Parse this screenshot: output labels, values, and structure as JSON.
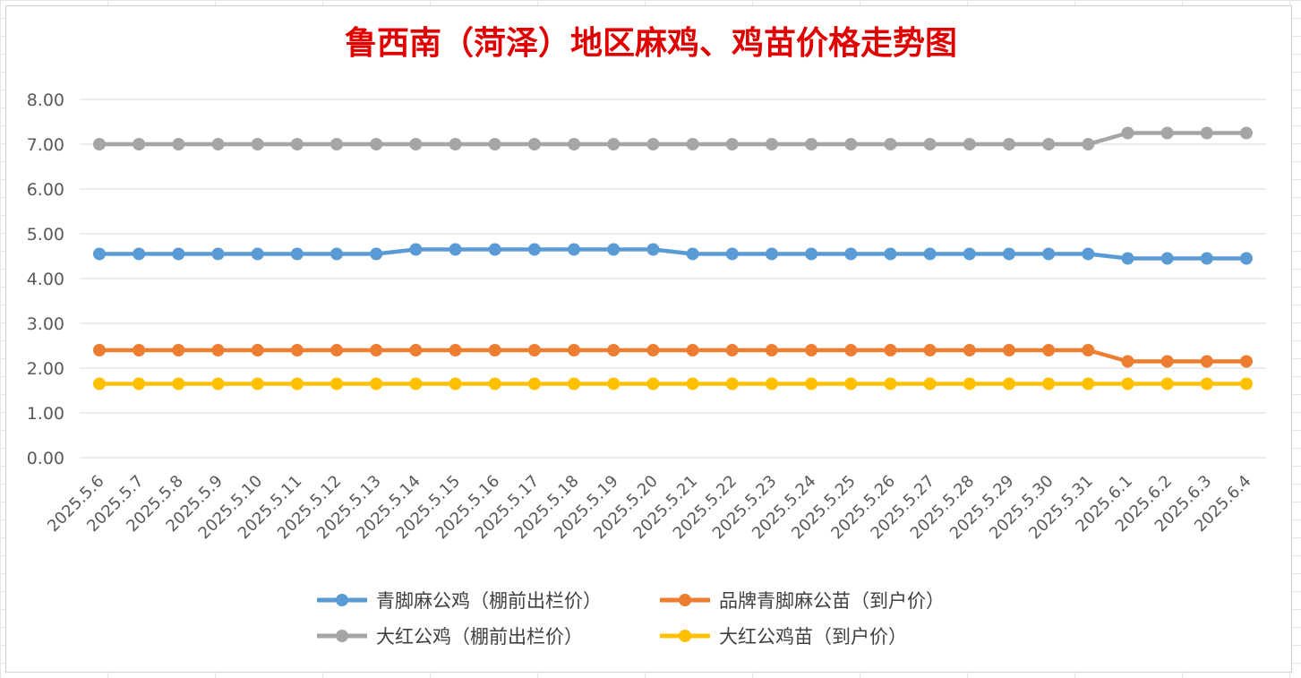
{
  "chart_data": {
    "type": "line",
    "title": "鲁西南（菏泽）地区麻鸡、鸡苗价格走势图",
    "xlabel": "",
    "ylabel": "",
    "ylim": [
      0,
      8
    ],
    "yticks": [
      "0.00",
      "1.00",
      "2.00",
      "3.00",
      "4.00",
      "5.00",
      "6.00",
      "7.00",
      "8.00"
    ],
    "grid": "horizontal",
    "legend_position": "bottom",
    "categories": [
      "2025.5.6",
      "2025.5.7",
      "2025.5.8",
      "2025.5.9",
      "2025.5.10",
      "2025.5.11",
      "2025.5.12",
      "2025.5.13",
      "2025.5.14",
      "2025.5.15",
      "2025.5.16",
      "2025.5.17",
      "2025.5.18",
      "2025.5.19",
      "2025.5.20",
      "2025.5.21",
      "2025.5.22",
      "2025.5.23",
      "2025.5.24",
      "2025.5.25",
      "2025.5.26",
      "2025.5.27",
      "2025.5.28",
      "2025.5.29",
      "2025.5.30",
      "2025.5.31",
      "2025.6.1",
      "2025.6.2",
      "2025.6.3",
      "2025.6.4"
    ],
    "series": [
      {
        "name": "青脚麻公鸡（棚前出栏价）",
        "color": "#5b9bd5",
        "values": [
          4.55,
          4.55,
          4.55,
          4.55,
          4.55,
          4.55,
          4.55,
          4.55,
          4.65,
          4.65,
          4.65,
          4.65,
          4.65,
          4.65,
          4.65,
          4.55,
          4.55,
          4.55,
          4.55,
          4.55,
          4.55,
          4.55,
          4.55,
          4.55,
          4.55,
          4.55,
          4.45,
          4.45,
          4.45,
          4.45
        ]
      },
      {
        "name": "品牌青脚麻公苗（到户价）",
        "color": "#ed7d31",
        "values": [
          2.4,
          2.4,
          2.4,
          2.4,
          2.4,
          2.4,
          2.4,
          2.4,
          2.4,
          2.4,
          2.4,
          2.4,
          2.4,
          2.4,
          2.4,
          2.4,
          2.4,
          2.4,
          2.4,
          2.4,
          2.4,
          2.4,
          2.4,
          2.4,
          2.4,
          2.4,
          2.15,
          2.15,
          2.15,
          2.15
        ]
      },
      {
        "name": "大红公鸡（棚前出栏价）",
        "color": "#a5a5a5",
        "values": [
          7.0,
          7.0,
          7.0,
          7.0,
          7.0,
          7.0,
          7.0,
          7.0,
          7.0,
          7.0,
          7.0,
          7.0,
          7.0,
          7.0,
          7.0,
          7.0,
          7.0,
          7.0,
          7.0,
          7.0,
          7.0,
          7.0,
          7.0,
          7.0,
          7.0,
          7.0,
          7.25,
          7.25,
          7.25,
          7.25
        ]
      },
      {
        "name": "大红公鸡苗（到户价）",
        "color": "#ffc000",
        "values": [
          1.65,
          1.65,
          1.65,
          1.65,
          1.65,
          1.65,
          1.65,
          1.65,
          1.65,
          1.65,
          1.65,
          1.65,
          1.65,
          1.65,
          1.65,
          1.65,
          1.65,
          1.65,
          1.65,
          1.65,
          1.65,
          1.65,
          1.65,
          1.65,
          1.65,
          1.65,
          1.65,
          1.65,
          1.65,
          1.65
        ]
      }
    ]
  }
}
